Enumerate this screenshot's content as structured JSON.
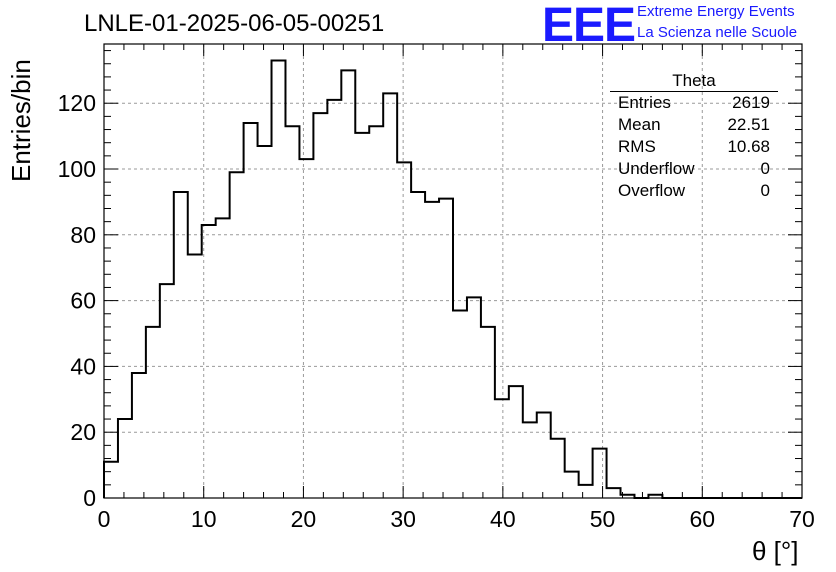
{
  "title": "LNLE-01-2025-06-05-00251",
  "logo": {
    "letters": "EEE",
    "line1": "Extreme Energy Events",
    "line2": "La Scienza nelle Scuole",
    "color": "#1a1aff"
  },
  "stats": {
    "title": "Theta",
    "rows": [
      {
        "label": "Entries",
        "value": "2619"
      },
      {
        "label": "Mean",
        "value": "22.51"
      },
      {
        "label": "RMS",
        "value": "10.68"
      },
      {
        "label": "Underflow",
        "value": "0"
      },
      {
        "label": "Overflow",
        "value": "0"
      }
    ]
  },
  "chart_data": {
    "type": "histogram",
    "title": "LNLE-01-2025-06-05-00251",
    "xlabel": "θ [°]",
    "ylabel": "Entries/bin",
    "xlim": [
      0,
      70
    ],
    "ylim": [
      0,
      138
    ],
    "bin_width": 1.4,
    "bin_edges_start": 0,
    "values": [
      11,
      24,
      38,
      52,
      65,
      93,
      74,
      83,
      85,
      99,
      114,
      107,
      133,
      113,
      103,
      117,
      121,
      130,
      111,
      113,
      123,
      102,
      93,
      90,
      91,
      57,
      61,
      52,
      30,
      34,
      23,
      26,
      18,
      8,
      4,
      15,
      3,
      1,
      0,
      1,
      0,
      0,
      0,
      0,
      0,
      0,
      0,
      0,
      0,
      0
    ],
    "xticks": [
      0,
      10,
      20,
      30,
      40,
      50,
      60,
      70
    ],
    "yticks": [
      0,
      20,
      40,
      60,
      80,
      100,
      120
    ],
    "grid": true,
    "line_color": "#000000"
  }
}
